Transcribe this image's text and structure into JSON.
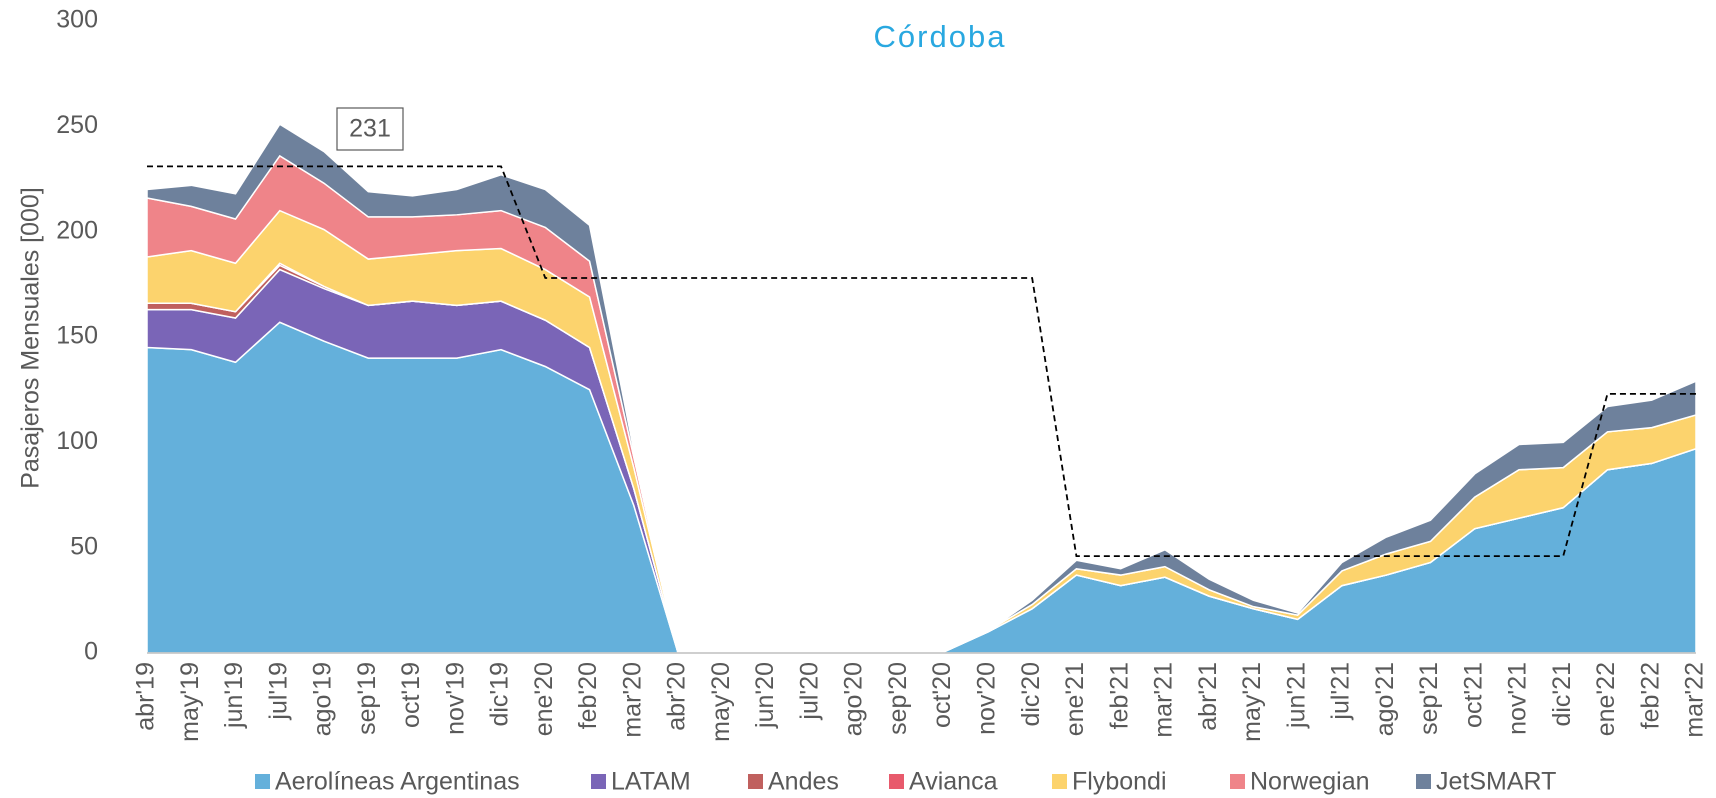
{
  "chart_data": {
    "type": "stacked_area",
    "title": "Córdoba",
    "y_label": "Pasajeros Mensuales [000]",
    "categories": [
      "abr'19",
      "may'19",
      "jun'19",
      "jul'19",
      "ago'19",
      "sep'19",
      "oct'19",
      "nov'19",
      "dic'19",
      "ene'20",
      "feb'20",
      "mar'20",
      "abr'20",
      "may'20",
      "jun'20",
      "jul'20",
      "ago'20",
      "sep'20",
      "oct'20",
      "nov'20",
      "dic'20",
      "ene'21",
      "feb'21",
      "mar'21",
      "abr'21",
      "may'21",
      "jun'21",
      "jul'21",
      "ago'21",
      "sep'21",
      "oct'21",
      "nov'21",
      "dic'21",
      "ene'22",
      "feb'22",
      "mar'22"
    ],
    "series": [
      {
        "name": "Aerolíneas Argentinas",
        "color": "#64b0db",
        "values": [
          145,
          144,
          138,
          157,
          148,
          140,
          140,
          140,
          144,
          136,
          125,
          70,
          0,
          0,
          0,
          0,
          0,
          0,
          0.5,
          10,
          21,
          37,
          32,
          36,
          27,
          21,
          16,
          32,
          37,
          43,
          59,
          64,
          69,
          87,
          90,
          97
        ]
      },
      {
        "name": "LATAM",
        "color": "#7a65b7",
        "values": [
          18,
          19,
          21,
          25,
          25,
          25,
          27,
          25,
          23,
          22,
          20,
          8,
          0,
          0,
          0,
          0,
          0,
          0,
          0,
          0,
          0,
          0,
          0,
          0,
          0,
          0,
          0,
          0,
          0,
          0,
          0,
          0,
          0,
          0,
          0,
          0
        ]
      },
      {
        "name": "Andes",
        "color": "#c0605e",
        "values": [
          3,
          3,
          3,
          2,
          1,
          0,
          0,
          0,
          0,
          0,
          0,
          0,
          0,
          0,
          0,
          0,
          0,
          0,
          0,
          0,
          0,
          0,
          0,
          0,
          0,
          0,
          0,
          0,
          0,
          0,
          0,
          0,
          0,
          0,
          0,
          0
        ]
      },
      {
        "name": "Avianca",
        "color": "#e85a6c",
        "values": [
          0,
          0,
          0,
          1,
          0,
          0,
          0,
          0,
          0,
          0,
          0,
          0,
          0,
          0,
          0,
          0,
          0,
          0,
          0,
          0,
          0,
          0,
          0,
          0,
          0,
          0,
          0,
          0,
          0,
          0,
          0,
          0,
          0,
          0,
          0,
          0
        ]
      },
      {
        "name": "Flybondi",
        "color": "#fcd36d",
        "values": [
          22,
          25,
          23,
          25,
          27,
          22,
          22,
          26,
          25,
          24,
          24,
          10,
          0,
          0,
          0,
          0,
          0,
          0,
          0,
          0.5,
          2,
          3,
          5,
          5,
          3,
          1,
          2,
          7,
          10,
          10,
          15,
          23,
          19,
          18,
          17,
          16
        ]
      },
      {
        "name": "Norwegian",
        "color": "#ef8489",
        "values": [
          28,
          21,
          21,
          26,
          22,
          20,
          18,
          17,
          18,
          20,
          17,
          5,
          0,
          0,
          0,
          0,
          0,
          0,
          0,
          0,
          0,
          0,
          0,
          0,
          0,
          0,
          0,
          0,
          0,
          0,
          0,
          0,
          0,
          0,
          0,
          0
        ]
      },
      {
        "name": "JetSMART",
        "color": "#6e819c",
        "values": [
          4,
          10,
          12,
          15,
          15,
          12,
          10,
          12,
          17,
          18,
          17,
          3,
          0,
          0,
          0,
          0,
          0,
          0,
          0,
          0,
          2,
          4,
          3,
          8,
          5,
          3,
          1,
          4,
          8,
          10,
          11,
          12,
          12,
          12,
          13,
          16
        ]
      }
    ],
    "reference": {
      "color": "#000000",
      "values": [
        231,
        231,
        231,
        231,
        231,
        231,
        231,
        231,
        231,
        178,
        178,
        178,
        178,
        178,
        178,
        178,
        178,
        178,
        178,
        178,
        178,
        46,
        46,
        46,
        46,
        46,
        46,
        46,
        46,
        46,
        46,
        46,
        46,
        123,
        123,
        123
      ]
    },
    "annotation": "231",
    "ylim": [
      0,
      300
    ],
    "yticks": [
      0,
      50,
      100,
      150,
      200,
      250,
      300
    ]
  }
}
